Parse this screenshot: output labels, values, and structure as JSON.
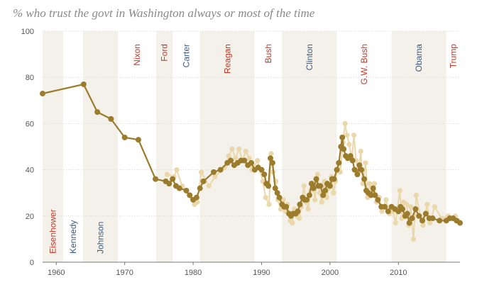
{
  "chart_data": {
    "type": "line",
    "title": "% who trust the govt in Washington always or most of the time",
    "xlabel": "",
    "ylabel": "",
    "xlim": [
      1958,
      2019
    ],
    "ylim": [
      0,
      100
    ],
    "x_ticks": [
      "1960",
      "1970",
      "1980",
      "1990",
      "2000",
      "2010"
    ],
    "y_ticks": [
      "0",
      "20",
      "40",
      "60",
      "80",
      "100"
    ],
    "grid": true,
    "colors": {
      "main_line": "#9b7b2c",
      "individual_polls": "#ead8aa",
      "shaded_band": "#f4f1ea",
      "republican": "#c0392b",
      "democrat": "#3d5a80",
      "gridline": "#d6d6d6"
    },
    "presidencies": [
      {
        "name": "Eisenhower",
        "start": 1958,
        "end": 1961,
        "party": "republican",
        "shaded": true,
        "label_position": "bottom"
      },
      {
        "name": "Kennedy",
        "start": 1961,
        "end": 1963.9,
        "party": "democrat",
        "shaded": false,
        "label_position": "bottom"
      },
      {
        "name": "Johnson",
        "start": 1963.9,
        "end": 1969,
        "party": "democrat",
        "shaded": true,
        "label_position": "bottom"
      },
      {
        "name": "Nixon",
        "start": 1969,
        "end": 1974.6,
        "party": "republican",
        "shaded": false,
        "label_position": "top"
      },
      {
        "name": "Ford",
        "start": 1974.6,
        "end": 1977,
        "party": "republican",
        "shaded": true,
        "label_position": "top"
      },
      {
        "name": "Carter",
        "start": 1977,
        "end": 1981,
        "party": "democrat",
        "shaded": false,
        "label_position": "top"
      },
      {
        "name": "Reagan",
        "start": 1981,
        "end": 1989,
        "party": "republican",
        "shaded": true,
        "label_position": "top"
      },
      {
        "name": "Bush",
        "start": 1989,
        "end": 1993,
        "party": "republican",
        "shaded": false,
        "label_position": "top"
      },
      {
        "name": "Clinton",
        "start": 1993,
        "end": 2001,
        "party": "democrat",
        "shaded": true,
        "label_position": "top"
      },
      {
        "name": "G.W. Bush",
        "start": 2001,
        "end": 2009,
        "party": "republican",
        "shaded": false,
        "label_position": "top"
      },
      {
        "name": "Obama",
        "start": 2009,
        "end": 2017,
        "party": "democrat",
        "shaded": true,
        "label_position": "top"
      },
      {
        "name": "Trump",
        "start": 2017,
        "end": 2019,
        "party": "republican",
        "shaded": false,
        "label_position": "top"
      }
    ],
    "series": [
      {
        "key": "moving_average",
        "x": [
          1958,
          1964,
          1966,
          1968,
          1970,
          1972,
          1974.5,
          1976,
          1976.5,
          1977,
          1977.5,
          1978,
          1979,
          1979.5,
          1980,
          1980.5,
          1981,
          1981.5,
          1983,
          1984,
          1985,
          1985.5,
          1986,
          1986.5,
          1987,
          1987.5,
          1988,
          1988.5,
          1989,
          1989.5,
          1990,
          1990.4,
          1990.7,
          1991,
          1991.3,
          1991.6,
          1992,
          1992.3,
          1992.6,
          1993,
          1993.3,
          1993.6,
          1994,
          1994.3,
          1994.6,
          1995,
          1995.3,
          1995.6,
          1996,
          1996.3,
          1996.6,
          1997,
          1997.3,
          1997.6,
          1998,
          1998.3,
          1998.6,
          1999,
          1999.3,
          1999.6,
          2000,
          2000.3,
          2000.6,
          2001,
          2001.3,
          2001.6,
          2001.8,
          2002,
          2002.3,
          2002.6,
          2003,
          2003.3,
          2003.6,
          2004,
          2004.3,
          2004.6,
          2005,
          2005.3,
          2005.6,
          2006,
          2006.3,
          2006.6,
          2007,
          2007.5,
          2008,
          2008.5,
          2009,
          2009.5,
          2010,
          2010.3,
          2010.6,
          2011,
          2011.3,
          2011.6,
          2012,
          2012.5,
          2013,
          2013.5,
          2014,
          2014.5,
          2015,
          2016,
          2017,
          2017.5,
          2018,
          2018.5,
          2019
        ],
        "values": [
          73,
          77,
          65,
          62,
          54,
          53,
          36,
          35,
          34,
          36,
          33,
          32,
          31,
          29,
          27,
          28,
          32,
          35,
          39,
          40,
          43,
          44,
          42,
          43,
          44,
          44,
          42,
          43,
          40,
          41,
          40,
          38,
          34,
          33,
          45,
          43,
          32,
          30,
          28,
          25,
          24,
          24,
          21,
          20,
          21,
          21,
          22,
          25,
          28,
          27,
          27,
          29,
          34,
          32,
          36,
          33,
          33,
          29,
          31,
          34,
          33,
          36,
          36,
          40,
          43,
          50,
          54,
          49,
          46,
          45,
          46,
          44,
          40,
          38,
          42,
          40,
          36,
          31,
          30,
          29,
          32,
          29,
          27,
          24,
          24,
          22,
          24,
          23,
          22,
          24,
          23,
          20,
          21,
          17,
          19,
          23,
          20,
          18,
          21,
          19,
          19,
          18,
          18,
          19,
          19,
          18,
          17
        ]
      },
      {
        "key": "individual_polls",
        "x": [
          1976.2,
          1977.2,
          1977.6,
          1978.4,
          1980.2,
          1980.6,
          1981.2,
          1982.3,
          1983.2,
          1984.6,
          1985.2,
          1985.7,
          1986.2,
          1986.7,
          1987.2,
          1987.7,
          1988.2,
          1988.6,
          1989.4,
          1990.2,
          1990.6,
          1991.1,
          1991.4,
          1991.7,
          1992.1,
          1992.4,
          1992.8,
          1993.2,
          1993.5,
          1993.8,
          1994.2,
          1994.5,
          1994.8,
          1995.2,
          1995.5,
          1995.8,
          1996.2,
          1996.5,
          1996.8,
          1997.2,
          1997.5,
          1997.8,
          1998.2,
          1998.5,
          1998.8,
          1999.2,
          1999.5,
          1999.8,
          2000.2,
          2000.5,
          2000.8,
          2001.2,
          2001.5,
          2001.9,
          2002.2,
          2002.5,
          2002.8,
          2003.2,
          2003.5,
          2003.8,
          2004.2,
          2004.5,
          2004.8,
          2005.2,
          2005.5,
          2005.8,
          2006.2,
          2006.5,
          2006.8,
          2007.2,
          2007.6,
          2008.2,
          2008.7,
          2009.2,
          2009.6,
          2010.2,
          2010.5,
          2010.8,
          2011.2,
          2011.5,
          2011.8,
          2012.2,
          2012.6,
          2013.2,
          2013.6,
          2014.2,
          2014.6,
          2015.3,
          2016.3,
          2017.3,
          2017.8,
          2018.3,
          2018.7
        ],
        "values": [
          38,
          37,
          40,
          33,
          25,
          26,
          39,
          33,
          37,
          41,
          46,
          49,
          45,
          49,
          44,
          48,
          45,
          40,
          44,
          35,
          28,
          25,
          47,
          39,
          35,
          27,
          23,
          27,
          22,
          25,
          18,
          17,
          23,
          20,
          19,
          24,
          33,
          26,
          23,
          31,
          34,
          27,
          38,
          30,
          26,
          35,
          28,
          32,
          37,
          30,
          35,
          43,
          39,
          52,
          60,
          55,
          51,
          45,
          55,
          44,
          39,
          48,
          34,
          43,
          28,
          34,
          31,
          34,
          26,
          28,
          22,
          27,
          21,
          22,
          17,
          31,
          19,
          26,
          25,
          16,
          24,
          10,
          29,
          20,
          16,
          25,
          17,
          24,
          19,
          20,
          19,
          20,
          18
        ]
      }
    ]
  }
}
